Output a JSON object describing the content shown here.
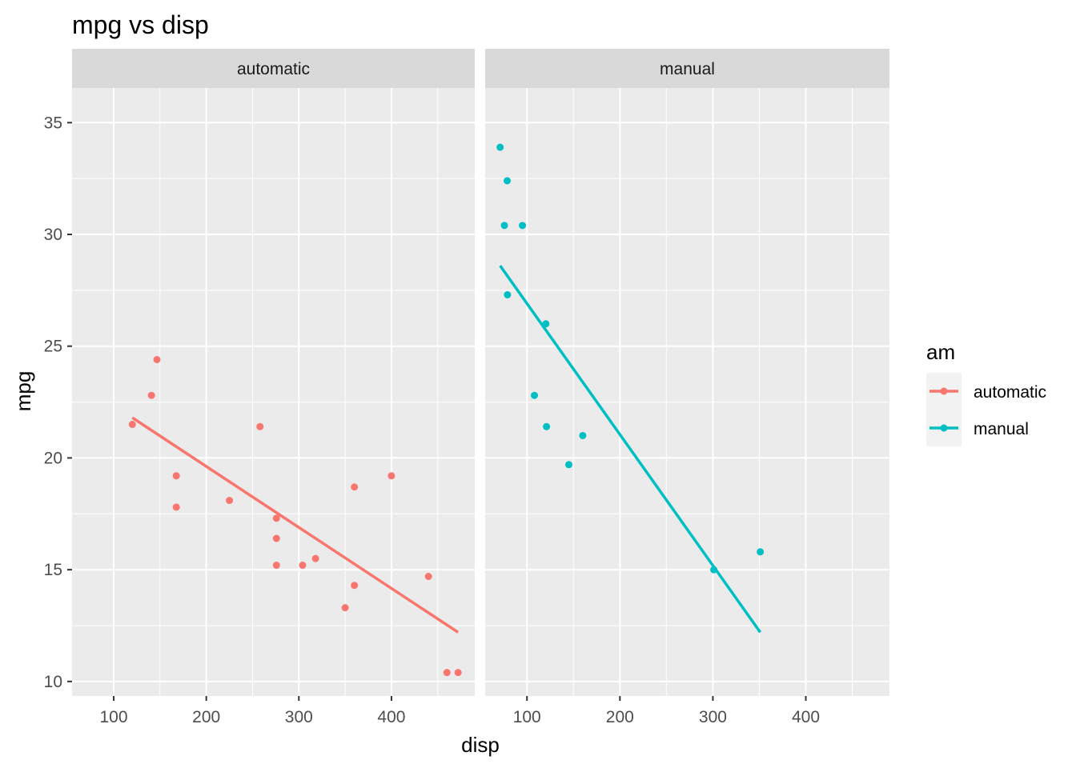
{
  "chart_data": {
    "type": "scatter",
    "title": "mpg vs disp",
    "xlabel": "disp",
    "ylabel": "mpg",
    "xlim": [
      55,
      490
    ],
    "ylim": [
      9.35,
      36.55
    ],
    "x_ticks": [
      100,
      200,
      300,
      400
    ],
    "y_ticks": [
      10,
      15,
      20,
      25,
      30,
      35
    ],
    "grid": true,
    "legend": {
      "title": "am",
      "position": "right",
      "entries": [
        "automatic",
        "manual"
      ]
    },
    "facets": [
      {
        "label": "automatic",
        "color": "#F8766D",
        "points": [
          {
            "x": 120.1,
            "y": 21.5
          },
          {
            "x": 140.8,
            "y": 22.8
          },
          {
            "x": 146.7,
            "y": 24.4
          },
          {
            "x": 167.6,
            "y": 19.2
          },
          {
            "x": 167.6,
            "y": 17.8
          },
          {
            "x": 225.0,
            "y": 18.1
          },
          {
            "x": 258.0,
            "y": 21.4
          },
          {
            "x": 275.8,
            "y": 17.3
          },
          {
            "x": 275.8,
            "y": 16.4
          },
          {
            "x": 275.8,
            "y": 15.2
          },
          {
            "x": 304.0,
            "y": 15.2
          },
          {
            "x": 318.0,
            "y": 15.5
          },
          {
            "x": 350.0,
            "y": 13.3
          },
          {
            "x": 360.0,
            "y": 18.7
          },
          {
            "x": 360.0,
            "y": 14.3
          },
          {
            "x": 400.0,
            "y": 19.2
          },
          {
            "x": 440.0,
            "y": 14.7
          },
          {
            "x": 460.0,
            "y": 10.4
          },
          {
            "x": 472.0,
            "y": 10.4
          }
        ],
        "fit_line": [
          {
            "x": 120.1,
            "y": 21.8
          },
          {
            "x": 472.0,
            "y": 12.2
          }
        ]
      },
      {
        "label": "manual",
        "color": "#00BFC4",
        "points": [
          {
            "x": 71.1,
            "y": 33.9
          },
          {
            "x": 75.7,
            "y": 30.4
          },
          {
            "x": 78.7,
            "y": 32.4
          },
          {
            "x": 79.0,
            "y": 27.3
          },
          {
            "x": 95.1,
            "y": 30.4
          },
          {
            "x": 108.0,
            "y": 22.8
          },
          {
            "x": 120.3,
            "y": 26.0
          },
          {
            "x": 121.0,
            "y": 21.4
          },
          {
            "x": 145.0,
            "y": 19.7
          },
          {
            "x": 160.0,
            "y": 21.0
          },
          {
            "x": 301.0,
            "y": 15.0
          },
          {
            "x": 351.0,
            "y": 15.8
          }
        ],
        "fit_line": [
          {
            "x": 71.1,
            "y": 28.6
          },
          {
            "x": 351.0,
            "y": 12.2
          }
        ]
      }
    ]
  }
}
